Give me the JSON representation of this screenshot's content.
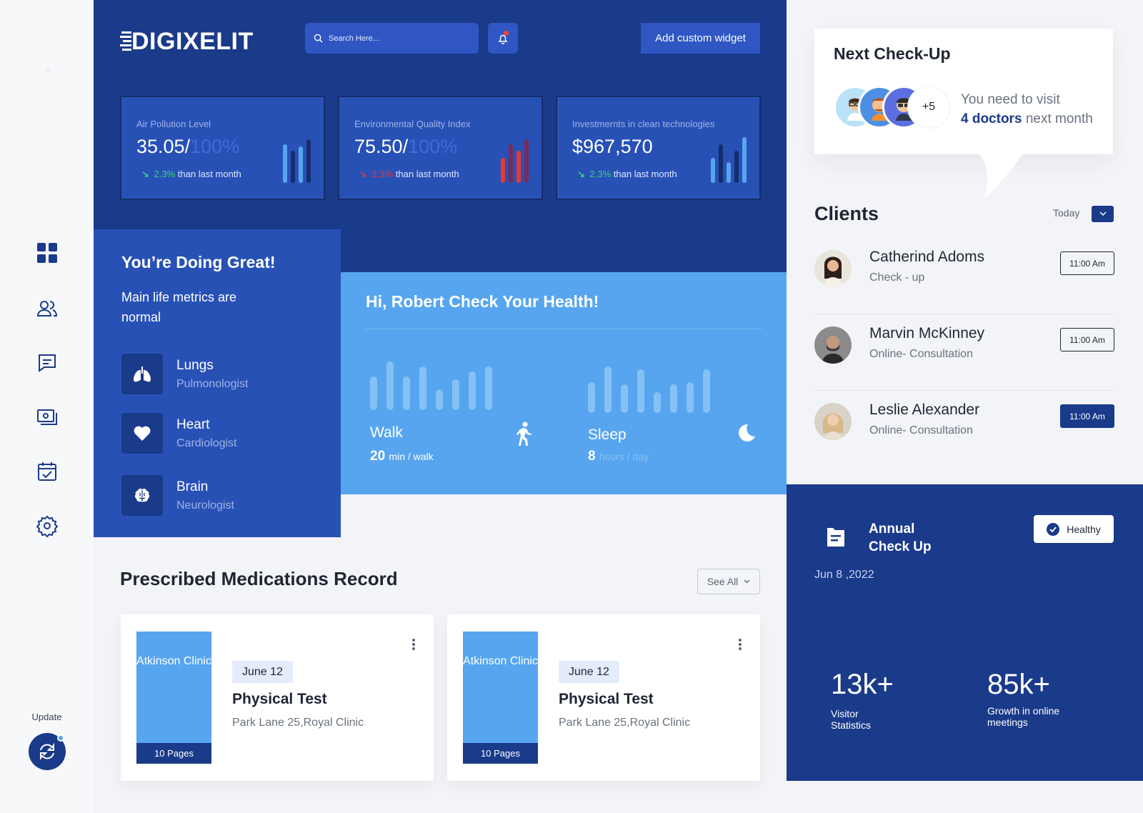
{
  "brand": {
    "name": "DIGIXELIT"
  },
  "header": {
    "search_placeholder": "Search Here...",
    "add_widget_label": "Add custom widget"
  },
  "stats": [
    {
      "label": "Air Pollution Level",
      "value": "35.05/",
      "value_dim": "100%",
      "change": "2.3%",
      "change_text": "than last month",
      "trend": "down",
      "change_color": "#35d47a",
      "bar_color": "#57a5ef",
      "bars": [
        0.85,
        0.7,
        0.8,
        0.95
      ]
    },
    {
      "label": "Environmental Quality Index",
      "value": "75.50/",
      "value_dim": "100%",
      "change": "2.3%",
      "change_text": "than last month",
      "trend": "down",
      "change_color": "#e53935",
      "bar_color": "#e53935",
      "bars": [
        0.55,
        0.85,
        0.7,
        0.95
      ]
    },
    {
      "label": "Investmernts in clean technologies",
      "value": "$967,570",
      "value_dim": "",
      "change": "2.3%",
      "change_text": "than last month",
      "trend": "down",
      "change_color": "#35d47a",
      "bar_color": "#57a5ef",
      "bars": [
        0.55,
        0.85,
        0.45,
        0.7,
        1.0
      ]
    }
  ],
  "great": {
    "title": "You’re Doing Great!",
    "subtitle": "Main life metrics are normal",
    "organs": [
      {
        "name": "Lungs",
        "specialist": "Pulmonologist",
        "icon": "lungs-icon"
      },
      {
        "name": "Heart",
        "specialist": "Cardiologist",
        "icon": "heart-icon"
      },
      {
        "name": "Brain",
        "specialist": "Neurologist",
        "icon": "brain-icon"
      }
    ]
  },
  "health": {
    "title": "Hi, Robert Check Your Health!",
    "walk": {
      "label": "Walk",
      "value": "20",
      "unit": "min / walk",
      "bars": [
        0.65,
        0.95,
        0.65,
        0.85,
        0.4,
        0.6,
        0.75,
        0.85
      ]
    },
    "sleep": {
      "label": "Sleep",
      "value": "8",
      "unit": "hours / day",
      "bars": [
        0.6,
        0.9,
        0.55,
        0.85,
        0.4,
        0.55,
        0.6,
        0.85
      ]
    }
  },
  "medications": {
    "title": "Prescribed Medications Record",
    "see_all_label": "See All",
    "records": [
      {
        "clinic": "Atkinson Clinic",
        "pages": "10 Pages",
        "date": "June 12",
        "name": "Physical Test",
        "location": "Park Lane  25,Royal Clinic"
      },
      {
        "clinic": "Atkinson Clinic",
        "pages": "10 Pages",
        "date": "June 12",
        "name": "Physical Test",
        "location": "Park Lane  25,Royal Clinic"
      }
    ]
  },
  "checkup": {
    "title": "Next Check-Up",
    "more_count": "+5",
    "message_line1": "You need to visit",
    "message_count": "4 doctors",
    "message_line2": "next month"
  },
  "clients": {
    "title": "Clients",
    "filter_label": "Today",
    "items": [
      {
        "name": "Catherind Adoms",
        "type": "Check - up",
        "time": "11:00 Am",
        "active": false
      },
      {
        "name": "Marvin McKinney",
        "type": "Online- Consultation",
        "time": "11:00 Am",
        "active": false
      },
      {
        "name": "Leslie Alexander",
        "type": "Online- Consultation",
        "time": "11:00 Am",
        "active": true
      }
    ]
  },
  "annual": {
    "title_line1": "Annual",
    "title_line2": "Check Up",
    "date": "Jun 8 ,2022",
    "badge": "Healthy",
    "stats": [
      {
        "value": "13k+",
        "label_line1": "Visitor",
        "label_line2": "Statistics"
      },
      {
        "value": "85k+",
        "label_line1": "Growth in online",
        "label_line2": "meetings"
      }
    ]
  },
  "sidebar": {
    "items": [
      {
        "icon": "dashboard-icon"
      },
      {
        "icon": "users-icon"
      },
      {
        "icon": "chat-icon"
      },
      {
        "icon": "payment-icon"
      },
      {
        "icon": "calendar-check-icon"
      },
      {
        "icon": "settings-icon"
      }
    ],
    "update_label": "Update"
  }
}
